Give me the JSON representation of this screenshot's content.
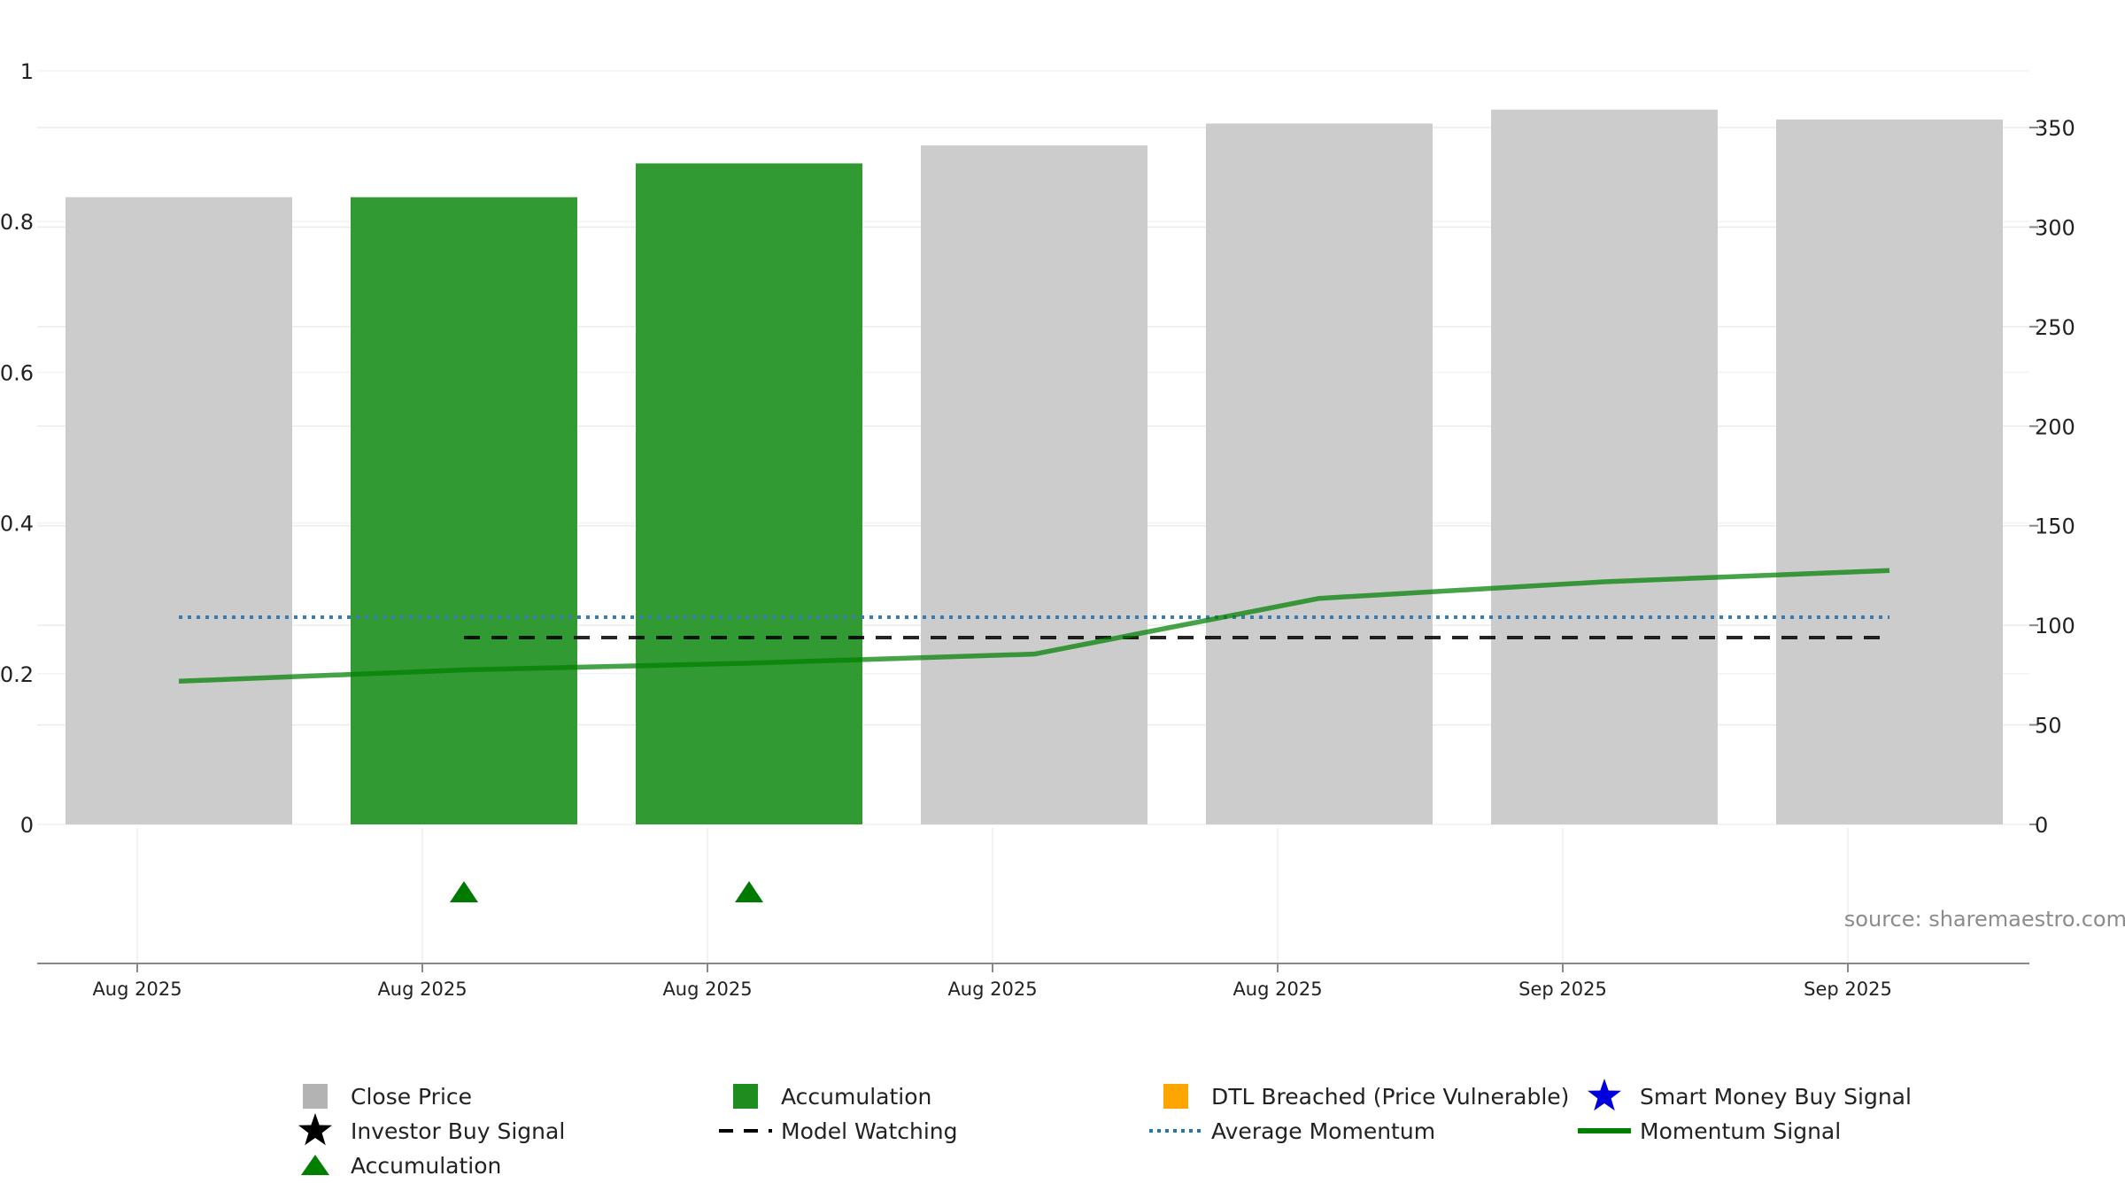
{
  "chart_data": {
    "type": "bar",
    "categories": [
      "Aug 2025",
      "Aug 2025",
      "Aug 2025",
      "Aug 2025",
      "Aug 2025",
      "Sep 2025",
      "Sep 2025"
    ],
    "x_tick_labels": [
      "Aug 2025",
      "Aug 2025",
      "Aug 2025",
      "Aug 2025",
      "Aug 2025",
      "Sep 2025",
      "Sep 2025"
    ],
    "bars": [
      {
        "value": 315,
        "kind": "Close Price"
      },
      {
        "value": 315,
        "kind": "Accumulation"
      },
      {
        "value": 332,
        "kind": "Accumulation"
      },
      {
        "value": 341,
        "kind": "Close Price"
      },
      {
        "value": 352,
        "kind": "Close Price"
      },
      {
        "value": 359,
        "kind": "Close Price"
      },
      {
        "value": 354,
        "kind": "Close Price"
      }
    ],
    "momentum_signal": [
      0.19,
      0.205,
      0.214,
      0.226,
      0.3,
      0.322,
      0.337
    ],
    "average_momentum": 0.275,
    "model_watching": {
      "start_index": 1,
      "end_index": 6,
      "value": 0.248
    },
    "accumulation_markers": [
      1,
      2
    ],
    "left_axis": {
      "ticks": [
        "0",
        "0.2",
        "0.4",
        "0.6",
        "0.8",
        "1"
      ],
      "range": [
        0,
        1
      ]
    },
    "right_axis": {
      "ticks": [
        "0",
        "50",
        "100",
        "150",
        "200",
        "250",
        "300",
        "350"
      ],
      "range": [
        0,
        350
      ]
    },
    "legend": [
      {
        "label": "Close Price",
        "symbol": "square",
        "color": "#b3b3b3"
      },
      {
        "label": "Accumulation",
        "symbol": "square",
        "color": "#1e8c1e"
      },
      {
        "label": "DTL Breached (Price Vulnerable)",
        "symbol": "square",
        "color": "#ffa500"
      },
      {
        "label": "Smart Money Buy Signal",
        "symbol": "star",
        "color": "#0000dd"
      },
      {
        "label": "Investor Buy Signal",
        "symbol": "star",
        "color": "#000000"
      },
      {
        "label": "Model Watching",
        "symbol": "dash",
        "color": "#000000"
      },
      {
        "label": "Average Momentum",
        "symbol": "dot",
        "color": "#1f77b4"
      },
      {
        "label": "Momentum Signal",
        "symbol": "line",
        "color": "#008000"
      },
      {
        "label": "Accumulation",
        "symbol": "triangle",
        "color": "#008000"
      }
    ],
    "source": "source: sharemaestro.com",
    "grid": true,
    "colors": {
      "close": "#cccccc",
      "accumulation": "#319a33",
      "momentum": "#008000",
      "average_momentum": "#3a7bb0",
      "model_watching": "#000000"
    }
  }
}
